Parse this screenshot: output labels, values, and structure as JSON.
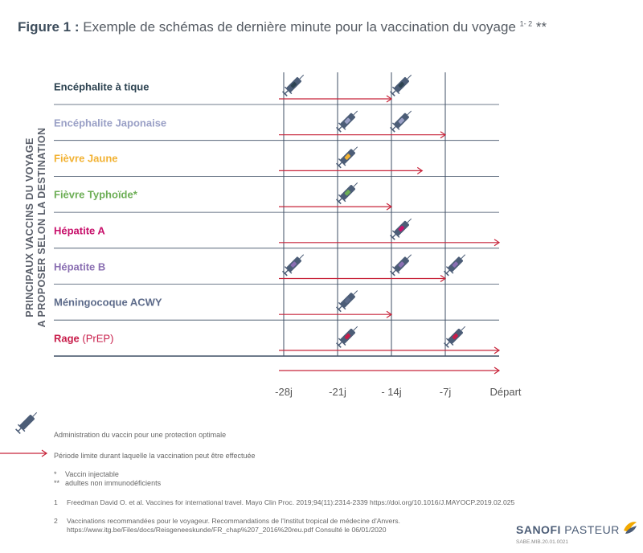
{
  "title": {
    "figure": "Figure 1 :",
    "text": "Exemple de schémas de dernière minute pour la vaccination du voyage",
    "refs": "1- 2",
    "mark": "**"
  },
  "vertical_label": {
    "line1": "PRINCIPAUX VACCINS DU VOYAGE",
    "line2": "A PROPOSER SELON LA DESTINATION"
  },
  "axis": {
    "ticks": [
      "-28j",
      "-21j",
      "- 14j",
      "-7j",
      "Départ"
    ],
    "days": [
      -28,
      -21,
      -14,
      -7,
      0
    ]
  },
  "vaccines": [
    {
      "name": "Encéphalite à tique",
      "extra": "",
      "color": "#2d4351",
      "doses": [
        -28,
        -14
      ],
      "arrow_end": -14
    },
    {
      "name": "Encéphalite Japonaise",
      "extra": "",
      "color": "#9aa0c6",
      "doses": [
        -21,
        -14
      ],
      "arrow_end": -7
    },
    {
      "name": "Fièvre Jaune",
      "extra": "",
      "color": "#f2b233",
      "doses": [
        -21
      ],
      "arrow_end": -10
    },
    {
      "name": "Fièvre Typhoïde*",
      "extra": "",
      "color": "#6dae56",
      "doses": [
        -21
      ],
      "arrow_end": -14
    },
    {
      "name": "Hépatite A",
      "extra": "",
      "color": "#c8126c",
      "doses": [
        -14
      ],
      "arrow_end": 0
    },
    {
      "name": "Hépatite B",
      "extra": "",
      "color": "#8a6fb2",
      "doses": [
        -28,
        -14,
        -7
      ],
      "arrow_end": -7
    },
    {
      "name": "Méningocoque ACWY",
      "extra": "",
      "color": "#5d6b8a",
      "doses": [
        -21
      ],
      "arrow_end": -14
    },
    {
      "name": "Rage",
      "extra": "(PrEP)",
      "color": "#c81d4a",
      "doses": [
        -21,
        -7
      ],
      "arrow_end": 0
    }
  ],
  "colors": {
    "arrow": "#c7243a",
    "grid": "#3f4f65",
    "syringe": "#4c5d77"
  },
  "legend": {
    "syringe_text": "Administration du vaccin pour une protection optimale",
    "arrow_text": "Période limite durant laquelle la vaccination peut être effectuée",
    "notes": [
      {
        "mark": "*",
        "text": "Vaccin injectable"
      },
      {
        "mark": "**",
        "text": "adultes non immunodéficients"
      }
    ]
  },
  "references": [
    {
      "num": "1",
      "text": "Freedman David O. et al. Vaccines for international travel. Mayo Clin Proc. 2019;94(11):2314-2339 https://doi.org/10.1016/J.MAYOCP.2019.02.025"
    },
    {
      "num": "2",
      "text": "Vaccinations recommandées pour le voyageur. Recommandations de l'Institut tropical de médecine d'Anvers.",
      "text2": "https://www.itg.be/Files/docs/Reisgeneeskunde/FR_chap%207_2016%20reu.pdf Consulté le 06/01/2020"
    }
  ],
  "logo": {
    "brand1": "SANOFI",
    "brand2": "PASTEUR",
    "code": "SABE.MIB.20.01.0021"
  }
}
